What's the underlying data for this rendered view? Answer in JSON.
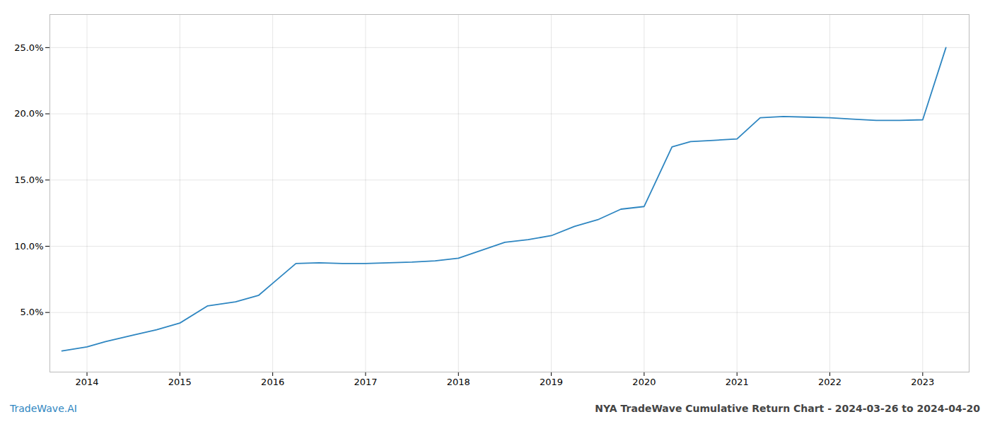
{
  "chart_data": {
    "type": "line",
    "x": [
      2013.73,
      2014.0,
      2014.2,
      2014.5,
      2014.75,
      2015.0,
      2015.3,
      2015.6,
      2015.85,
      2016.0,
      2016.25,
      2016.5,
      2016.75,
      2017.0,
      2017.25,
      2017.5,
      2017.75,
      2018.0,
      2018.25,
      2018.5,
      2018.75,
      2019.0,
      2019.25,
      2019.5,
      2019.75,
      2020.0,
      2020.1,
      2020.3,
      2020.5,
      2020.75,
      2021.0,
      2021.25,
      2021.5,
      2021.75,
      2022.0,
      2022.25,
      2022.5,
      2022.75,
      2023.0,
      2023.25
    ],
    "values": [
      2.1,
      2.4,
      2.8,
      3.3,
      3.7,
      4.2,
      5.5,
      5.8,
      6.3,
      7.2,
      8.7,
      8.75,
      8.7,
      8.7,
      8.75,
      8.8,
      8.9,
      9.1,
      9.7,
      10.3,
      10.5,
      10.8,
      11.5,
      12.0,
      12.8,
      13.0,
      14.5,
      17.5,
      17.9,
      18.0,
      18.1,
      19.7,
      19.8,
      19.75,
      19.7,
      19.6,
      19.5,
      19.5,
      19.55,
      25.0
    ],
    "color": "#2e86c1",
    "xlim": [
      2013.6,
      2023.5
    ],
    "xticks": [
      2014,
      2015,
      2016,
      2017,
      2018,
      2019,
      2020,
      2021,
      2022,
      2023
    ],
    "ylim": [
      0.5,
      27.5
    ],
    "yticks": [
      {
        "value": 5.0,
        "label": "5.0%"
      },
      {
        "value": 10.0,
        "label": "10.0%"
      },
      {
        "value": 15.0,
        "label": "15.0%"
      },
      {
        "value": 20.0,
        "label": "20.0%"
      },
      {
        "value": 25.0,
        "label": "25.0%"
      }
    ],
    "grid": true,
    "annotations": [
      {
        "text": "TradeWave.AI",
        "color": "#2e86c1"
      },
      {
        "text": "NYA TradeWave Cumulative Return Chart - 2024-03-26 to 2024-04-20",
        "color": "#444444"
      }
    ]
  }
}
